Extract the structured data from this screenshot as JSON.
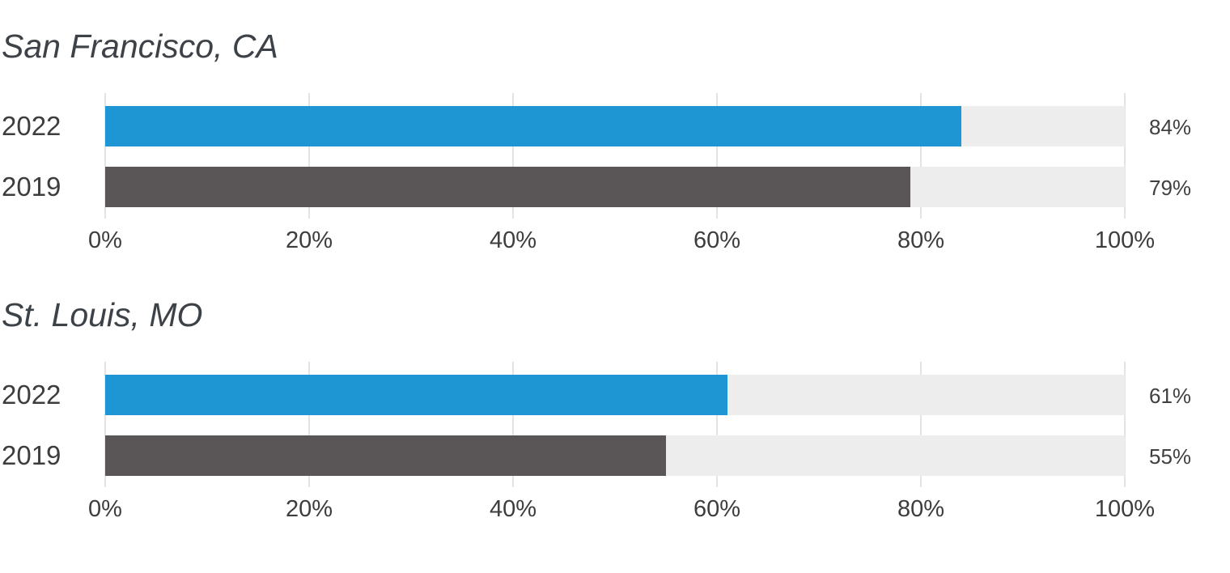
{
  "colors": {
    "bar_2022_blue": "#1e96d3",
    "bar_2019_gray": "#5a5658",
    "track_background": "#ededed",
    "gridline": "#e4e4e4"
  },
  "chart_data": [
    {
      "type": "bar",
      "orientation": "horizontal",
      "title": "San Francisco, CA",
      "categories": [
        "2022",
        "2019"
      ],
      "values": [
        84,
        79
      ],
      "value_labels": [
        "84%",
        "79%"
      ],
      "series_colors": [
        "#1e96d3",
        "#5a5658"
      ],
      "xlim": [
        0,
        100
      ],
      "x_ticks": [
        "0%",
        "20%",
        "40%",
        "60%",
        "80%",
        "100%"
      ],
      "grid": true,
      "legend": false,
      "track_color": "#ededed",
      "gridline_color": "#e4e4e4"
    },
    {
      "type": "bar",
      "orientation": "horizontal",
      "title": "St. Louis, MO",
      "categories": [
        "2022",
        "2019"
      ],
      "values": [
        61,
        55
      ],
      "value_labels": [
        "61%",
        "55%"
      ],
      "series_colors": [
        "#1e96d3",
        "#5a5658"
      ],
      "xlim": [
        0,
        100
      ],
      "x_ticks": [
        "0%",
        "20%",
        "40%",
        "60%",
        "80%",
        "100%"
      ],
      "grid": true,
      "legend": false,
      "track_color": "#ededed",
      "gridline_color": "#e4e4e4"
    }
  ]
}
